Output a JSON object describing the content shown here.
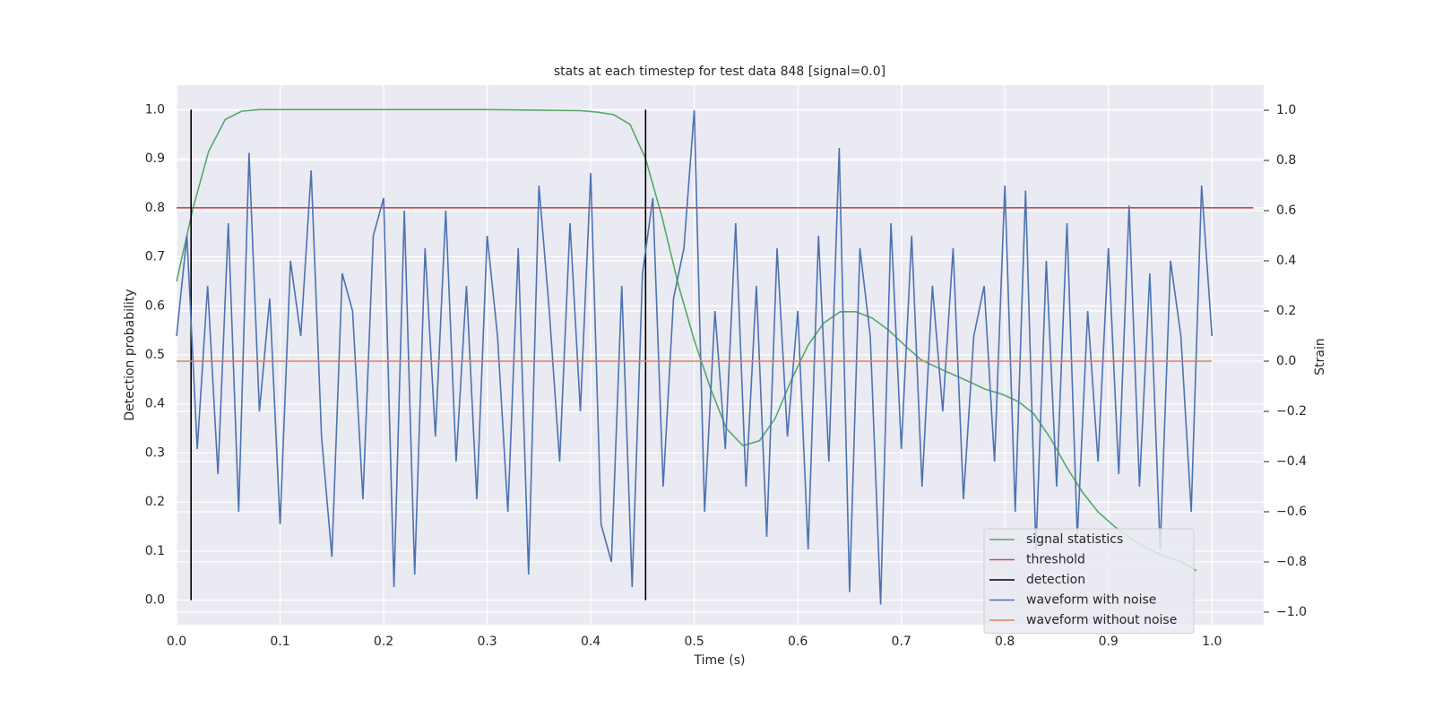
{
  "chart_data": {
    "type": "line",
    "title": "stats at each timestep for test data 848 [signal=0.0]",
    "xlabel": "Time (s)",
    "ylabel": "Detection probability",
    "y2label": "Strain",
    "xlim": [
      0,
      1.05
    ],
    "ylim": [
      -0.05,
      1.05
    ],
    "y2lim": [
      -1.05,
      1.1
    ],
    "xticks": [
      {
        "value": 0,
        "label": "0.0"
      },
      {
        "value": 0.1,
        "label": "0.1"
      },
      {
        "value": 0.2,
        "label": "0.2"
      },
      {
        "value": 0.3,
        "label": "0.3"
      },
      {
        "value": 0.4,
        "label": "0.4"
      },
      {
        "value": 0.5,
        "label": "0.5"
      },
      {
        "value": 0.6,
        "label": "0.6"
      },
      {
        "value": 0.7,
        "label": "0.7"
      },
      {
        "value": 0.8,
        "label": "0.8"
      },
      {
        "value": 0.9,
        "label": "0.9"
      },
      {
        "value": 1,
        "label": "1.0"
      }
    ],
    "yticks": [
      {
        "value": 0,
        "label": "0.0"
      },
      {
        "value": 0.1,
        "label": "0.1"
      },
      {
        "value": 0.2,
        "label": "0.2"
      },
      {
        "value": 0.3,
        "label": "0.3"
      },
      {
        "value": 0.4,
        "label": "0.4"
      },
      {
        "value": 0.5,
        "label": "0.5"
      },
      {
        "value": 0.6,
        "label": "0.6"
      },
      {
        "value": 0.7,
        "label": "0.7"
      },
      {
        "value": 0.8,
        "label": "0.8"
      },
      {
        "value": 0.9,
        "label": "0.9"
      },
      {
        "value": 1,
        "label": "1.0"
      }
    ],
    "y2ticks": [
      {
        "value": -1,
        "label": "−1.0"
      },
      {
        "value": -0.8,
        "label": "−0.8"
      },
      {
        "value": -0.6,
        "label": "−0.6"
      },
      {
        "value": -0.4,
        "label": "−0.4"
      },
      {
        "value": -0.2,
        "label": "−0.2"
      },
      {
        "value": 0,
        "label": "0.0"
      },
      {
        "value": 0.2,
        "label": "0.2"
      },
      {
        "value": 0.4,
        "label": "0.4"
      },
      {
        "value": 0.6,
        "label": "0.6"
      },
      {
        "value": 0.8,
        "label": "0.8"
      },
      {
        "value": 1,
        "label": "1.0"
      }
    ],
    "grid": true,
    "legend": "lower right",
    "series": [
      {
        "name": "signal statistics",
        "color": "#55a868",
        "x": [
          0,
          0.016,
          0.031,
          0.047,
          0.063,
          0.08,
          0.2,
          0.3,
          0.39,
          0.406,
          0.422,
          0.438,
          0.453,
          0.469,
          0.485,
          0.5,
          0.516,
          0.531,
          0.547,
          0.563,
          0.578,
          0.594,
          0.61,
          0.625,
          0.641,
          0.656,
          0.672,
          0.688,
          0.703,
          0.719,
          0.734,
          0.75,
          0.766,
          0.781,
          0.797,
          0.813,
          0.828,
          0.844,
          0.86,
          0.875,
          0.89,
          0.906,
          0.922,
          0.938,
          0.953,
          0.969,
          0.985
        ],
        "values": [
          0.65,
          0.8,
          0.915,
          0.98,
          0.997,
          1.0,
          1.0,
          1.0,
          0.998,
          0.995,
          0.99,
          0.97,
          0.9,
          0.78,
          0.64,
          0.53,
          0.43,
          0.35,
          0.315,
          0.325,
          0.37,
          0.45,
          0.52,
          0.565,
          0.588,
          0.588,
          0.575,
          0.55,
          0.52,
          0.49,
          0.475,
          0.46,
          0.445,
          0.43,
          0.42,
          0.405,
          0.38,
          0.33,
          0.27,
          0.22,
          0.18,
          0.15,
          0.125,
          0.105,
          0.09,
          0.08,
          0.06
        ]
      },
      {
        "name": "threshold",
        "color": "#c44e52",
        "x": [
          0,
          1.04
        ],
        "values": [
          0.8,
          0.8
        ]
      },
      {
        "name": "detection",
        "color": "#000000",
        "x": [
          0.014,
          0.014,
          null,
          0.453,
          0.453
        ],
        "values": [
          0,
          1,
          null,
          0,
          1
        ]
      },
      {
        "name": "waveform with noise",
        "color": "#4c72b0",
        "axis": "y2",
        "x": [
          0,
          0.01,
          0.02,
          0.03,
          0.04,
          0.05,
          0.06,
          0.07,
          0.08,
          0.09,
          0.1,
          0.11,
          0.12,
          0.13,
          0.14,
          0.15,
          0.16,
          0.17,
          0.18,
          0.19,
          0.2,
          0.21,
          0.22,
          0.23,
          0.24,
          0.25,
          0.26,
          0.27,
          0.28,
          0.29,
          0.3,
          0.31,
          0.32,
          0.33,
          0.34,
          0.35,
          0.36,
          0.37,
          0.38,
          0.39,
          0.4,
          0.41,
          0.42,
          0.43,
          0.44,
          0.45,
          0.46,
          0.47,
          0.48,
          0.49,
          0.5,
          0.51,
          0.52,
          0.53,
          0.54,
          0.55,
          0.56,
          0.57,
          0.58,
          0.59,
          0.6,
          0.61,
          0.62,
          0.63,
          0.64,
          0.65,
          0.66,
          0.67,
          0.68,
          0.69,
          0.7,
          0.71,
          0.72,
          0.73,
          0.74,
          0.75,
          0.76,
          0.77,
          0.78,
          0.79,
          0.8,
          0.81,
          0.82,
          0.83,
          0.84,
          0.85,
          0.86,
          0.87,
          0.88,
          0.89,
          0.9,
          0.91,
          0.92,
          0.93,
          0.94,
          0.95,
          0.96,
          0.97,
          0.98,
          0.99,
          1.0
        ],
        "values": [
          0.1,
          0.5,
          -0.35,
          0.3,
          -0.45,
          0.55,
          -0.6,
          0.83,
          -0.2,
          0.25,
          -0.65,
          0.4,
          0.1,
          0.76,
          -0.3,
          -0.78,
          0.35,
          0.2,
          -0.55,
          0.5,
          0.65,
          -0.9,
          0.6,
          -0.85,
          0.45,
          -0.3,
          0.6,
          -0.4,
          0.3,
          -0.55,
          0.5,
          0.1,
          -0.6,
          0.45,
          -0.85,
          0.7,
          0.2,
          -0.4,
          0.55,
          -0.2,
          0.75,
          -0.65,
          -0.8,
          0.3,
          -0.9,
          0.35,
          0.65,
          -0.5,
          0.25,
          0.45,
          1.0,
          -0.6,
          0.2,
          -0.35,
          0.55,
          -0.5,
          0.3,
          -0.7,
          0.45,
          -0.3,
          0.2,
          -0.75,
          0.5,
          -0.4,
          0.85,
          -0.92,
          0.45,
          0.1,
          -0.97,
          0.55,
          -0.35,
          0.5,
          -0.5,
          0.3,
          -0.2,
          0.45,
          -0.55,
          0.1,
          0.3,
          -0.4,
          0.7,
          -0.6,
          0.68,
          -0.75,
          0.4,
          -0.5,
          0.55,
          -0.7,
          0.2,
          -0.4,
          0.45,
          -0.45,
          0.62,
          -0.5,
          0.35,
          -0.75,
          0.4,
          0.1,
          -0.6,
          0.7,
          0.1
        ]
      },
      {
        "name": "waveform without noise",
        "color": "#dd8452",
        "axis": "y2",
        "x": [
          0,
          1.0
        ],
        "values": [
          0,
          0
        ]
      }
    ]
  }
}
